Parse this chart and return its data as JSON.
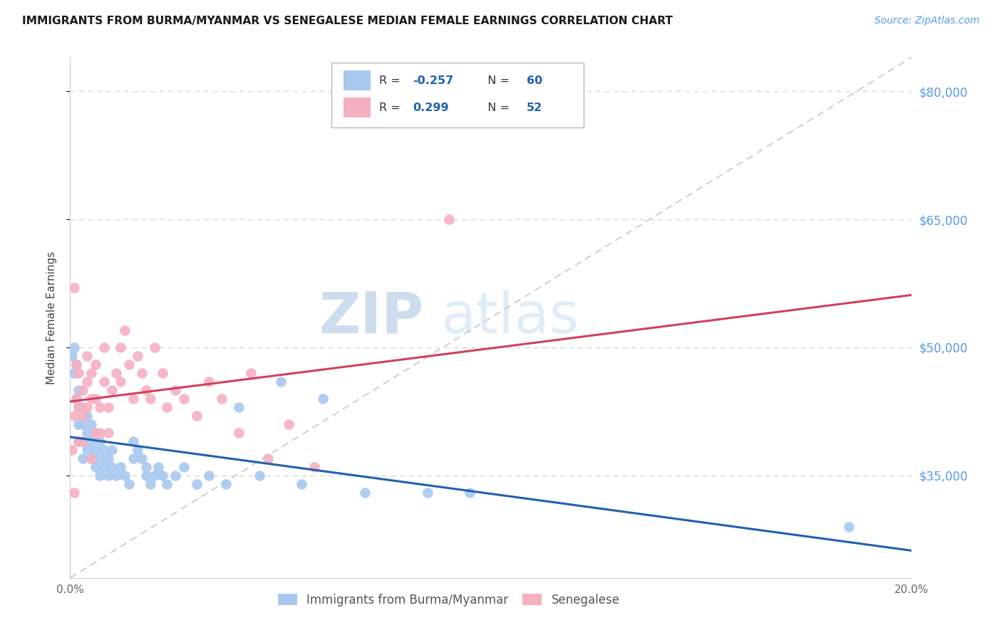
{
  "title": "IMMIGRANTS FROM BURMA/MYANMAR VS SENEGALESE MEDIAN FEMALE EARNINGS CORRELATION CHART",
  "source": "Source: ZipAtlas.com",
  "ylabel": "Median Female Earnings",
  "x_min": 0.0,
  "x_max": 0.2,
  "y_min": 23000,
  "y_max": 84000,
  "y_ticks": [
    35000,
    50000,
    65000,
    80000
  ],
  "x_ticks": [
    0.0,
    0.05,
    0.1,
    0.15,
    0.2
  ],
  "legend_labels": [
    "Immigrants from Burma/Myanmar",
    "Senegalese"
  ],
  "R_blue": -0.257,
  "N_blue": 60,
  "R_pink": 0.299,
  "N_pink": 52,
  "color_blue": "#a8c8f0",
  "color_pink": "#f5b0c0",
  "line_color_blue": "#2060b0",
  "line_color_pink": "#d04060",
  "watermark_zip": "ZIP",
  "watermark_atlas": "atlas",
  "background_color": "#ffffff",
  "grid_color": "#d8d8d8",
  "blue_x": [
    0.0005,
    0.001,
    0.001,
    0.0015,
    0.0015,
    0.002,
    0.002,
    0.002,
    0.002,
    0.003,
    0.003,
    0.003,
    0.003,
    0.004,
    0.004,
    0.004,
    0.005,
    0.005,
    0.005,
    0.006,
    0.006,
    0.006,
    0.007,
    0.007,
    0.007,
    0.008,
    0.008,
    0.009,
    0.009,
    0.01,
    0.01,
    0.011,
    0.012,
    0.013,
    0.014,
    0.015,
    0.015,
    0.016,
    0.017,
    0.018,
    0.018,
    0.019,
    0.02,
    0.021,
    0.022,
    0.023,
    0.025,
    0.027,
    0.03,
    0.033,
    0.037,
    0.04,
    0.045,
    0.05,
    0.055,
    0.06,
    0.07,
    0.085,
    0.095,
    0.185
  ],
  "blue_y": [
    49000,
    50000,
    47000,
    48000,
    44000,
    45000,
    43000,
    41000,
    39000,
    43000,
    41000,
    39000,
    37000,
    42000,
    40000,
    38000,
    41000,
    39000,
    37000,
    40000,
    38000,
    36000,
    39000,
    37000,
    35000,
    38000,
    36000,
    37000,
    35000,
    38000,
    36000,
    35000,
    36000,
    35000,
    34000,
    39000,
    37000,
    38000,
    37000,
    36000,
    35000,
    34000,
    35000,
    36000,
    35000,
    34000,
    35000,
    36000,
    34000,
    35000,
    34000,
    43000,
    35000,
    46000,
    34000,
    44000,
    33000,
    33000,
    33000,
    29000
  ],
  "pink_x": [
    0.0005,
    0.001,
    0.001,
    0.001,
    0.0015,
    0.0015,
    0.002,
    0.002,
    0.002,
    0.003,
    0.003,
    0.003,
    0.004,
    0.004,
    0.004,
    0.005,
    0.005,
    0.005,
    0.006,
    0.006,
    0.006,
    0.007,
    0.007,
    0.008,
    0.008,
    0.009,
    0.009,
    0.01,
    0.011,
    0.012,
    0.012,
    0.013,
    0.014,
    0.015,
    0.016,
    0.017,
    0.018,
    0.019,
    0.02,
    0.022,
    0.023,
    0.025,
    0.027,
    0.03,
    0.033,
    0.036,
    0.04,
    0.043,
    0.047,
    0.052,
    0.058,
    0.09
  ],
  "pink_y": [
    38000,
    57000,
    42000,
    33000,
    48000,
    44000,
    47000,
    43000,
    39000,
    45000,
    42000,
    39000,
    49000,
    46000,
    43000,
    47000,
    44000,
    37000,
    48000,
    44000,
    40000,
    43000,
    40000,
    50000,
    46000,
    43000,
    40000,
    45000,
    47000,
    50000,
    46000,
    52000,
    48000,
    44000,
    49000,
    47000,
    45000,
    44000,
    50000,
    47000,
    43000,
    45000,
    44000,
    42000,
    46000,
    44000,
    40000,
    47000,
    37000,
    41000,
    36000,
    65000
  ]
}
